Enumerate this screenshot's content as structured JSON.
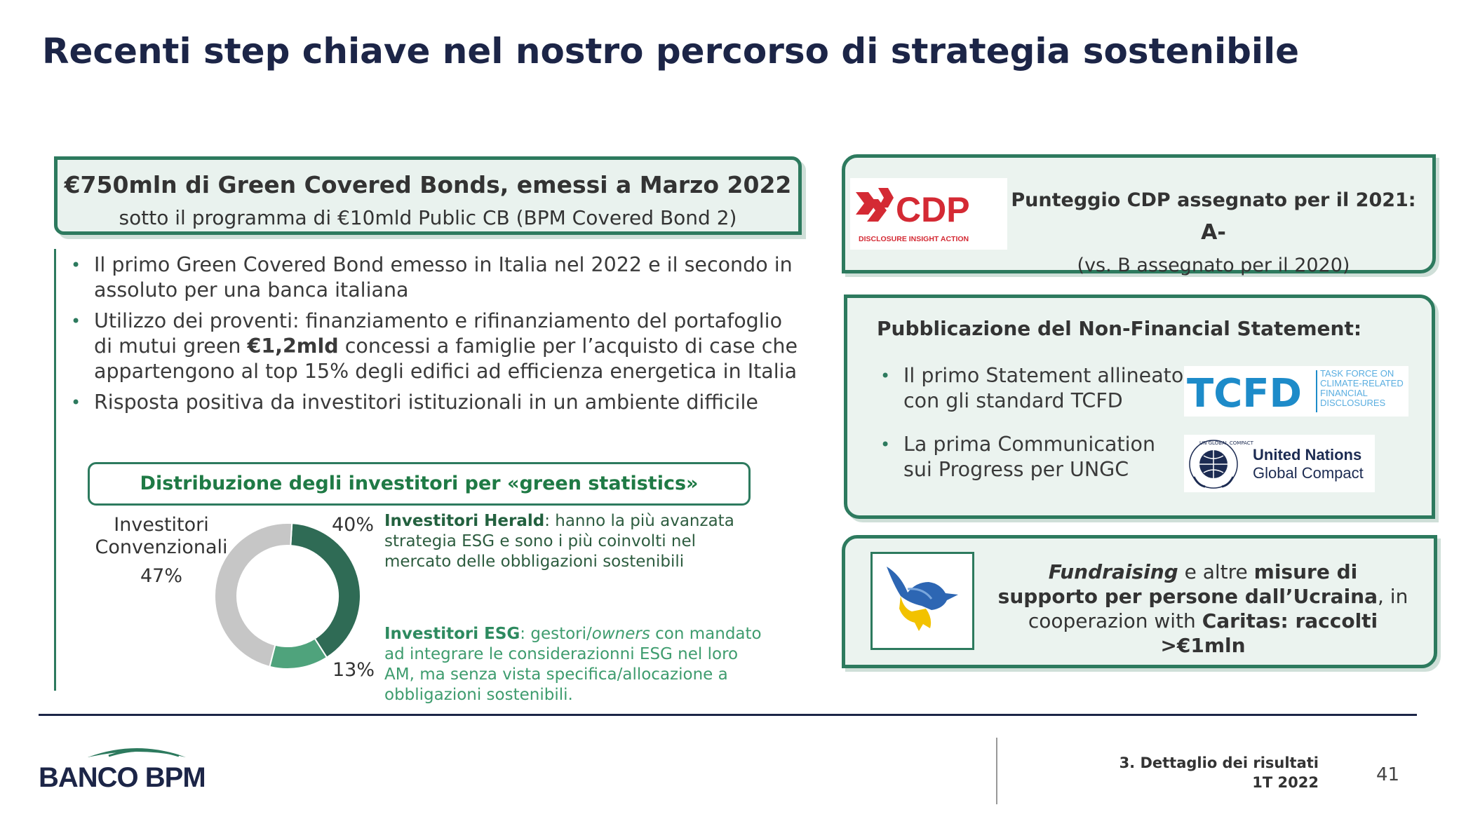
{
  "title": "Recenti step chiave nel nostro percorso di strategia sostenibile",
  "bond": {
    "heading": "€750mln di Green Covered Bonds, emessi a Marzo 2022",
    "subheading": "sotto il programma di €10mld Public CB (BPM Covered Bond 2)"
  },
  "left_bullets": {
    "b1": "Il primo Green Covered Bond emesso in Italia nel 2022 e il secondo in assoluto per una banca italiana",
    "b2_pre": "Utilizzo dei proventi: finanziamento e rifinanziamento del portafoglio di mutui green ",
    "b2_bold": "€1,2mld",
    "b2_post": " concessi a famiglie per l’acquisto di case che appartengono al top 15% degli edifici ad efficienza energetica in Italia",
    "b3": "Risposta positiva da investitori istituzionali in un ambiente difficile"
  },
  "distribution": {
    "title": "Distribuzione degli investitori per «green statistics»",
    "conv_label": "Investitori Convenzionali",
    "conv_pct": "47%",
    "herald_pct": "40%",
    "esg_pct": "13%",
    "herald_name": "Investitori Herald",
    "herald_desc": ": hanno la più avanzata strategia ESG e sono i più coinvolti nel mercato delle obbligazioni sostenibili",
    "esg_name": "Investitori ESG",
    "esg_desc_1": ": gestori/",
    "esg_desc_italic": "owners",
    "esg_desc_2": " con mandato ad integrare le considerazionni ESG nel loro AM, ma senza vista specifica/allocazione a obbligazioni sostenibili."
  },
  "chart_data": {
    "type": "pie",
    "categories": [
      "Investitori Herald",
      "Investitori ESG",
      "Investitori Convenzionali"
    ],
    "values": [
      40,
      13,
      47
    ],
    "colors": [
      "#2f6b55",
      "#4fa37c",
      "#c6c6c6"
    ]
  },
  "cdp": {
    "logo_text": "CDP",
    "logo_tagline": "DISCLOSURE INSIGHT ACTION",
    "line1": "Punteggio CDP assegnato per il 2021: ",
    "score": "A-",
    "line2": "(vs. B assegnato per il 2020)"
  },
  "nfs": {
    "title": "Pubblicazione del Non-Financial Statement:",
    "b1": "Il primo Statement allineato con gli standard TCFD",
    "b2": "La prima Communication sui Progress per UNGC",
    "tcfd_logo": "TCFD",
    "tcfd_tag": "TASK FORCE ON CLIMATE-RELATED FINANCIAL DISCLOSURES",
    "ungc_line1": "United Nations",
    "ungc_line2": "Global Compact",
    "ungc_ring": "UN GLOBAL COMPACT"
  },
  "ukraine": {
    "t1_italic": "Fundraising",
    "t1": " e altre ",
    "t1_bold": "misure di supporto per persone dall’Ucraina",
    "t2": ", in cooperazion with ",
    "t2_bold": "Caritas: raccolti >€1mln"
  },
  "footer": {
    "bank_name": "BANCO BPM",
    "section": "3. Dettaglio dei risultati",
    "period": "1T 2022",
    "page": "41"
  },
  "colors": {
    "brand_green": "#2d7a5e",
    "title_navy": "#1c2547"
  }
}
